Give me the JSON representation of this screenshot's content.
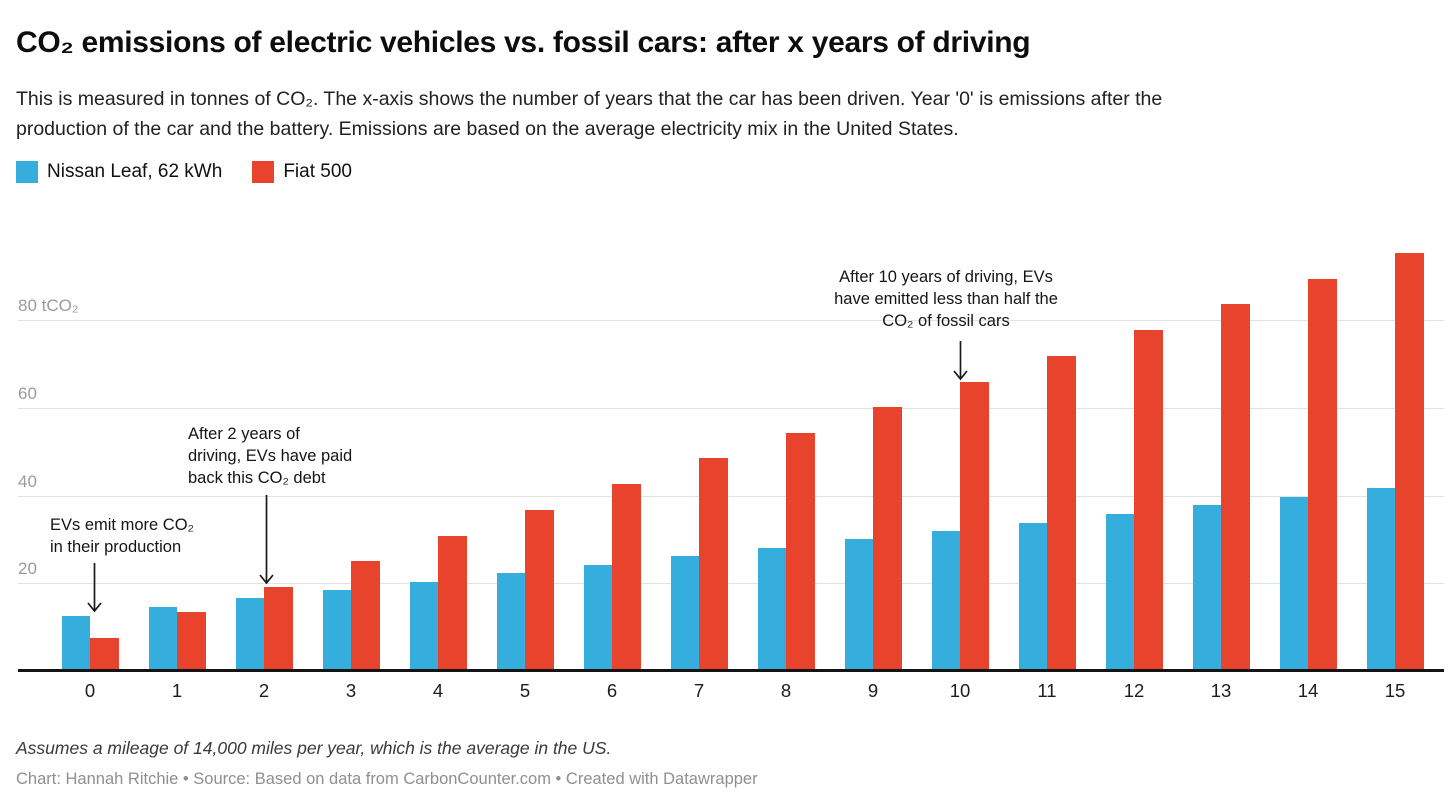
{
  "header": {
    "title": "CO₂ emissions of electric vehicles vs. fossil cars: after x years of driving",
    "subtitle": "This is measured in tonnes of CO₂. The x-axis shows the number of years that the car has been driven. Year '0' is emissions after the\nproduction of the car and the battery. Emissions are based on the average electricity mix in the United States."
  },
  "legend": {
    "items": [
      {
        "label": "Nissan Leaf, 62 kWh",
        "color": "#35AEDE"
      },
      {
        "label": "Fiat 500",
        "color": "#E8432D"
      }
    ]
  },
  "chart_data": {
    "type": "bar",
    "title": "CO₂ emissions of electric vehicles vs. fossil cars: after x years of driving",
    "xlabel": "",
    "ylabel": "tCO₂",
    "ylim": [
      0,
      100
    ],
    "grid": "horizontal",
    "legend_position": "top-left",
    "categories": [
      "0",
      "1",
      "2",
      "3",
      "4",
      "5",
      "6",
      "7",
      "8",
      "9",
      "10",
      "11",
      "12",
      "13",
      "14",
      "15"
    ],
    "series": [
      {
        "name": "Nissan Leaf, 62 kWh",
        "color": "#35AEDE",
        "values": [
          12.2,
          14.1,
          16.1,
          18.0,
          19.9,
          21.9,
          23.8,
          25.7,
          27.6,
          29.6,
          31.5,
          33.4,
          35.4,
          37.3,
          39.2,
          41.2
        ]
      },
      {
        "name": "Fiat 500",
        "color": "#E8432D",
        "values": [
          7.0,
          12.9,
          18.7,
          24.6,
          30.4,
          36.3,
          42.1,
          48.0,
          53.8,
          59.7,
          65.5,
          71.4,
          77.2,
          83.1,
          88.9,
          94.8
        ]
      }
    ],
    "y_ticks": [
      {
        "value": 20,
        "label": "20"
      },
      {
        "value": 40,
        "label": "40"
      },
      {
        "value": 60,
        "label": "60"
      },
      {
        "value": 80,
        "label": "80 tCO₂"
      }
    ]
  },
  "annotations": [
    {
      "id": "production",
      "text": "EVs emit more CO₂\nin their production"
    },
    {
      "id": "payback",
      "text": "After 2 years of\ndriving, EVs have paid\nback this CO₂ debt"
    },
    {
      "id": "ten-years",
      "text": "After 10 years of driving, EVs\nhave emitted less than half the\nCO₂ of fossil cars"
    }
  ],
  "footer": {
    "note": "Assumes a mileage of 14,000 miles per year, which is the average in the US.",
    "byline": "Chart: Hannah Ritchie • Source: Based on data from CarbonCounter.com • Created with Datawrapper"
  }
}
